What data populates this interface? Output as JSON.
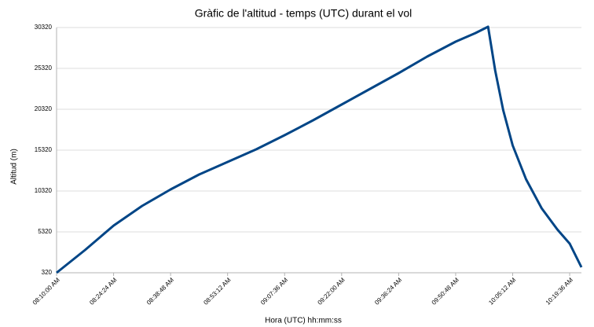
{
  "chart_data": {
    "type": "line",
    "title": "Gràfic de l'altitud - temps (UTC) durant el vol",
    "x_label": "Hora (UTC) hh:mm:ss",
    "y_label": "Altitud (m)",
    "x": [
      "08:10:00 AM",
      "08:17:12 AM",
      "08:24:24 AM",
      "08:31:36 AM",
      "08:38:48 AM",
      "08:46:00 AM",
      "08:53:12 AM",
      "09:00:24 AM",
      "09:07:36 AM",
      "09:14:48 AM",
      "09:22:00 AM",
      "09:29:12 AM",
      "09:36:24 AM",
      "09:43:36 AM",
      "09:50:48 AM",
      "09:55:46 AM",
      "09:59:00 AM",
      "10:00:48 AM",
      "10:02:48 AM",
      "10:05:12 AM",
      "10:08:34 AM",
      "10:12:32 AM",
      "10:16:30 AM",
      "10:19:36 AM",
      "10:22:34 AM"
    ],
    "values": [
      320,
      3110,
      6090,
      8490,
      10510,
      12340,
      13880,
      15420,
      17150,
      18970,
      20900,
      22820,
      24740,
      26760,
      28590,
      29640,
      30420,
      25030,
      20220,
      15900,
      11760,
      8200,
      5610,
      3880,
      990
    ],
    "color": "#004586",
    "xlim": [
      "08:10:00 AM",
      "10:22:34 AM"
    ],
    "xticks": [
      "08:10:00 AM",
      "08:24:24 AM",
      "08:38:48 AM",
      "08:53:12 AM",
      "09:07:36 AM",
      "09:22:00 AM",
      "09:36:24 AM",
      "09:50:48 AM",
      "10:05:12 AM",
      "10:19:36 AM"
    ],
    "ylim": [
      320,
      30320
    ],
    "yticks": [
      320,
      5320,
      10320,
      15320,
      20320,
      25320,
      30320
    ],
    "grid": true
  }
}
